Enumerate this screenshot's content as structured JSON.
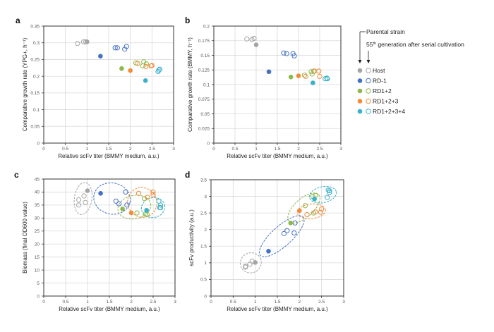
{
  "legend": {
    "parental_label": "Parental strain",
    "generation_label_prefix": "55",
    "generation_label_sup": "th",
    "generation_label_suffix": " generation after serial cultivation",
    "entries": [
      {
        "name": "Host",
        "color": "#a5a5a5"
      },
      {
        "name": "RD-1",
        "color": "#4472c4"
      },
      {
        "name": "RD1+2",
        "color": "#8db84a"
      },
      {
        "name": "RD1+2+3",
        "color": "#f08c3a"
      },
      {
        "name": "RD1+2+3+4",
        "color": "#3bb0c9"
      }
    ]
  },
  "chart_data": [
    {
      "panel": "a",
      "type": "scatter",
      "xlabel": "Relative scFv titer (BMMY medium, a.u.)",
      "ylabel": "Comparative growth rate (YPG+,  h⁻¹)",
      "xlim": [
        0,
        3
      ],
      "ylim": [
        0,
        0.35
      ],
      "xticks": [
        "0",
        "0.5",
        "1",
        "1.5",
        "2",
        "2.5",
        "3"
      ],
      "yticks": [
        "0",
        "0.05",
        "0.1",
        "0.15",
        "0.2",
        "0.25",
        "0.3",
        "0.35"
      ],
      "grid": true,
      "series": [
        {
          "name": "Host",
          "parental": [
            [
              1.0,
              0.303
            ]
          ],
          "gen55": [
            [
              0.78,
              0.298
            ],
            [
              0.92,
              0.303
            ],
            [
              0.97,
              0.303
            ]
          ]
        },
        {
          "name": "RD-1",
          "parental": [
            [
              1.31,
              0.26
            ]
          ],
          "gen55": [
            [
              1.65,
              0.285
            ],
            [
              1.7,
              0.285
            ],
            [
              1.87,
              0.281
            ],
            [
              1.91,
              0.289
            ]
          ]
        },
        {
          "name": "RD1+2",
          "parental": [
            [
              1.8,
              0.223
            ]
          ],
          "gen55": [
            [
              2.13,
              0.24
            ],
            [
              2.31,
              0.243
            ],
            [
              2.29,
              0.231
            ],
            [
              2.37,
              0.237
            ]
          ]
        },
        {
          "name": "RD1+2+3",
          "parental": [
            [
              2.0,
              0.217
            ]
          ],
          "gen55": [
            [
              2.17,
              0.238
            ],
            [
              2.36,
              0.229
            ],
            [
              2.5,
              0.232
            ],
            [
              2.48,
              0.231
            ]
          ]
        },
        {
          "name": "RD1+2+3+4",
          "parental": [
            [
              2.35,
              0.187
            ]
          ],
          "gen55": [
            [
              2.64,
              0.214
            ],
            [
              2.68,
              0.221
            ],
            [
              2.66,
              0.218
            ]
          ]
        }
      ]
    },
    {
      "panel": "b",
      "type": "scatter",
      "xlabel": "Relative scFv titer (BMMY medium, a.u.)",
      "ylabel": "Comparative growth rate (BMMY, h⁻¹)",
      "xlim": [
        0,
        3
      ],
      "ylim": [
        0,
        0.2
      ],
      "xticks": [
        "0",
        "0.5",
        "1",
        "1.5",
        "2",
        "2.5",
        "3"
      ],
      "yticks": [
        "0",
        "0.025",
        "0.05",
        "0.075",
        "0.1",
        "0.125",
        "0.15",
        "0.175",
        "0.2"
      ],
      "grid": true,
      "series": [
        {
          "name": "Host",
          "parental": [
            [
              1.0,
              0.168
            ]
          ],
          "gen55": [
            [
              0.78,
              0.178
            ],
            [
              0.9,
              0.177
            ],
            [
              0.95,
              0.179
            ]
          ]
        },
        {
          "name": "RD-1",
          "parental": [
            [
              1.3,
              0.122
            ]
          ],
          "gen55": [
            [
              1.65,
              0.154
            ],
            [
              1.72,
              0.153
            ],
            [
              1.87,
              0.153
            ],
            [
              1.9,
              0.149
            ]
          ]
        },
        {
          "name": "RD1+2",
          "parental": [
            [
              1.82,
              0.113
            ]
          ],
          "gen55": [
            [
              2.14,
              0.116
            ],
            [
              2.3,
              0.122
            ],
            [
              2.32,
              0.118
            ],
            [
              2.36,
              0.123
            ]
          ]
        },
        {
          "name": "RD1+2+3",
          "parental": [
            [
              2.0,
              0.115
            ]
          ],
          "gen55": [
            [
              2.17,
              0.114
            ],
            [
              2.38,
              0.123
            ],
            [
              2.48,
              0.123
            ],
            [
              2.5,
              0.114
            ]
          ]
        },
        {
          "name": "RD1+2+3+4",
          "parental": [
            [
              2.34,
              0.103
            ]
          ],
          "gen55": [
            [
              2.63,
              0.11
            ],
            [
              2.67,
              0.111
            ],
            [
              2.68,
              0.11
            ]
          ]
        }
      ]
    },
    {
      "panel": "c",
      "type": "scatter",
      "xlabel": "Relative scFv titer (BMMY medium, a.u.)",
      "ylabel": "Biomass (final OD600 value)",
      "xlim": [
        0,
        3
      ],
      "ylim": [
        0,
        45
      ],
      "xticks": [
        "0",
        "0.5",
        "1",
        "1.5",
        "2",
        "2.5",
        "3"
      ],
      "yticks": [
        "0",
        "5",
        "10",
        "15",
        "20",
        "25",
        "30",
        "35",
        "40",
        "45"
      ],
      "grid": true,
      "ellipses": true,
      "series": [
        {
          "name": "Host",
          "parental": [
            [
              1.0,
              40.5
            ]
          ],
          "gen55": [
            [
              0.8,
              37
            ],
            [
              0.8,
              35
            ],
            [
              0.92,
              38.5
            ],
            [
              0.95,
              36
            ]
          ]
        },
        {
          "name": "RD-1",
          "parental": [
            [
              1.3,
              39.5
            ]
          ],
          "gen55": [
            [
              1.65,
              36.5
            ],
            [
              1.72,
              35.5
            ],
            [
              1.87,
              40
            ],
            [
              1.9,
              35
            ]
          ]
        },
        {
          "name": "RD1+2",
          "parental": [
            [
              1.8,
              33.5
            ]
          ],
          "gen55": [
            [
              2.13,
              32
            ],
            [
              2.3,
              37.5
            ],
            [
              2.32,
              31.5
            ],
            [
              2.36,
              31.5
            ]
          ]
        },
        {
          "name": "RD1+2+3",
          "parental": [
            [
              2.0,
              32
            ]
          ],
          "gen55": [
            [
              2.17,
              39.5
            ],
            [
              2.37,
              38
            ],
            [
              2.5,
              40
            ],
            [
              2.5,
              39
            ]
          ]
        },
        {
          "name": "RD1+2+3+4",
          "parental": [
            [
              2.35,
              33
            ]
          ],
          "gen55": [
            [
              2.63,
              36.5
            ],
            [
              2.67,
              35
            ],
            [
              2.67,
              34
            ],
            [
              2.65,
              34
            ]
          ]
        }
      ]
    },
    {
      "panel": "d",
      "type": "scatter",
      "xlabel": "Relative scFv titer (BMMY medium, a.u.)",
      "ylabel": "scFv productivity (a.u.)",
      "xlim": [
        0,
        3
      ],
      "ylim": [
        0,
        3.5
      ],
      "xticks": [
        "0",
        "0.5",
        "1",
        "1.5",
        "2",
        "2.5",
        "3"
      ],
      "yticks": [
        "0",
        "0.5",
        "1",
        "1.5",
        "2",
        "2.5",
        "3",
        "3.5"
      ],
      "grid": true,
      "ellipses": true,
      "series": [
        {
          "name": "Host",
          "parental": [
            [
              1.0,
              1.01
            ]
          ],
          "gen55": [
            [
              0.78,
              0.9
            ],
            [
              0.78,
              0.87
            ],
            [
              0.88,
              0.96
            ],
            [
              0.93,
              1.05
            ]
          ]
        },
        {
          "name": "RD-1",
          "parental": [
            [
              1.3,
              1.35
            ]
          ],
          "gen55": [
            [
              1.65,
              1.88
            ],
            [
              1.72,
              1.97
            ],
            [
              1.88,
              1.9
            ],
            [
              1.9,
              2.2
            ]
          ]
        },
        {
          "name": "RD1+2",
          "parental": [
            [
              1.8,
              2.2
            ]
          ],
          "gen55": [
            [
              2.13,
              2.72
            ],
            [
              2.3,
              3.0
            ],
            [
              2.32,
              2.5
            ],
            [
              2.36,
              3.03
            ]
          ]
        },
        {
          "name": "RD1+2+3",
          "parental": [
            [
              2.0,
              2.57
            ]
          ],
          "gen55": [
            [
              2.17,
              2.45
            ],
            [
              2.36,
              2.53
            ],
            [
              2.48,
              2.52
            ],
            [
              2.5,
              2.62
            ]
          ]
        },
        {
          "name": "RD1+2+3+4",
          "parental": [
            [
              2.34,
              2.92
            ]
          ],
          "gen55": [
            [
              2.63,
              2.97
            ],
            [
              2.65,
              3.19
            ],
            [
              2.68,
              3.17
            ],
            [
              2.68,
              3.12
            ]
          ]
        }
      ]
    }
  ]
}
